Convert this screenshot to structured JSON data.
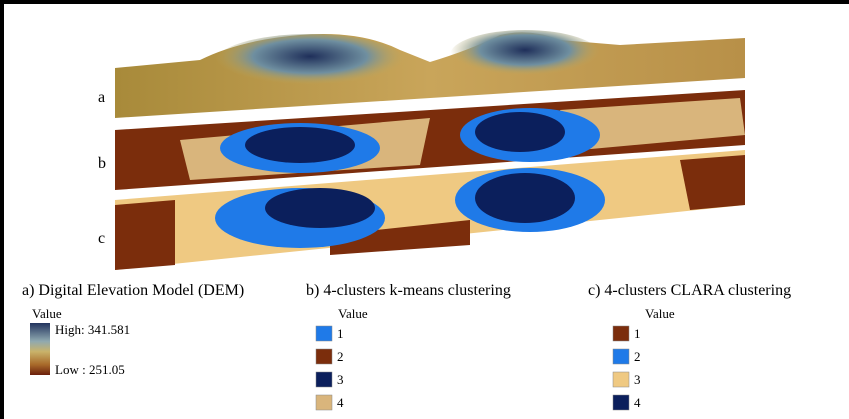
{
  "panels": [
    {
      "label": "a"
    },
    {
      "label": "b"
    },
    {
      "label": "c"
    }
  ],
  "legends": [
    {
      "title": "a) Digital Elevation Model (DEM)",
      "heading": "Value",
      "high": "High: 341.581",
      "low": "Low : 251.05"
    },
    {
      "title": "b) 4-clusters k-means clustering",
      "heading": "Value",
      "items": [
        {
          "label": "1",
          "color": "#1f7ae8"
        },
        {
          "label": "2",
          "color": "#7b2d0c"
        },
        {
          "label": "3",
          "color": "#0b1f5c"
        },
        {
          "label": "4",
          "color": "#d9b57c"
        }
      ]
    },
    {
      "title": "c) 4-clusters CLARA clustering",
      "heading": "Value",
      "items": [
        {
          "label": "1",
          "color": "#7b2d0c"
        },
        {
          "label": "2",
          "color": "#1f7ae8"
        },
        {
          "label": "3",
          "color": "#efc982"
        },
        {
          "label": "4",
          "color": "#0b1f5c"
        }
      ]
    }
  ]
}
